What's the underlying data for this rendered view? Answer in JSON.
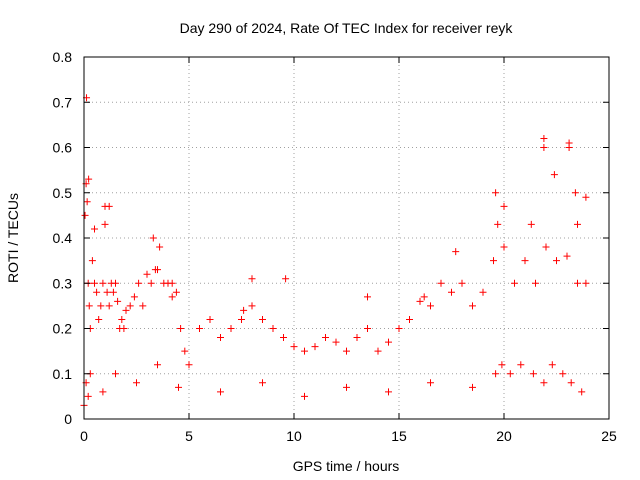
{
  "chart_data": {
    "type": "scatter",
    "title": "Day 290 of 2024, Rate Of TEC Index for receiver reyk",
    "xlabel": "GPS time / hours",
    "ylabel": "ROTI / TECUs",
    "xlim": [
      0,
      25
    ],
    "ylim": [
      0,
      0.8
    ],
    "x_ticks": [
      0,
      5,
      10,
      15,
      20,
      25
    ],
    "x_tick_labels": [
      "0",
      "5",
      "10",
      "15",
      "20",
      "25"
    ],
    "y_ticks": [
      0,
      0.1,
      0.2,
      0.3,
      0.4,
      0.5,
      0.6,
      0.7,
      0.8
    ],
    "y_tick_labels": [
      "0",
      "0.1",
      "0.2",
      "0.3",
      "0.4",
      "0.5",
      "0.6",
      "0.7",
      "0.8"
    ],
    "grid": true,
    "marker": "plus",
    "color": "#ff0000",
    "series": [
      {
        "x": [
          0.0,
          0.05,
          0.1,
          0.15,
          0.2,
          0.25,
          0.3,
          0.4,
          0.5,
          0.6,
          0.7,
          0.8,
          0.9,
          1.0,
          1.1,
          1.2,
          1.3,
          1.4,
          1.5,
          1.6,
          1.7,
          1.8,
          1.9,
          2.0,
          2.2,
          2.4,
          2.6,
          2.8,
          3.0,
          3.2,
          3.4,
          3.6,
          3.8,
          4.0,
          4.2,
          4.4,
          4.6,
          4.8,
          5.0,
          5.5,
          6.0,
          6.5,
          7.0,
          7.5,
          8.0,
          8.5,
          9.0,
          9.5,
          10.0,
          10.5,
          11.0,
          11.5,
          12.0,
          12.5,
          13.0,
          13.5,
          14.0,
          14.5,
          15.0,
          15.5,
          16.0,
          16.5,
          17.0,
          17.5,
          18.0,
          18.5,
          19.0,
          19.5,
          20.0,
          20.5,
          21.0,
          21.5,
          22.0,
          22.5,
          23.0,
          23.5,
          23.9,
          0.1,
          0.2,
          0.3,
          0.9,
          1.5,
          2.5,
          3.5,
          4.5,
          6.5,
          8.5,
          10.5,
          12.5,
          14.5,
          16.5,
          18.5,
          19.6,
          19.9,
          20.3,
          20.8,
          21.4,
          21.9,
          22.3,
          22.8,
          23.2,
          23.7,
          0.12,
          0.22,
          0.5,
          1.0,
          1.2,
          3.3,
          3.5,
          4.2,
          7.6,
          8.0,
          9.6,
          13.5,
          16.2,
          17.7,
          19.6,
          19.7,
          20.0,
          21.3,
          21.9,
          21.9,
          22.4,
          23.1,
          23.1,
          23.4,
          23.5,
          23.9
        ],
        "y": [
          0.03,
          0.45,
          0.52,
          0.48,
          0.3,
          0.25,
          0.2,
          0.35,
          0.3,
          0.28,
          0.22,
          0.25,
          0.3,
          0.47,
          0.28,
          0.25,
          0.3,
          0.28,
          0.3,
          0.26,
          0.2,
          0.22,
          0.2,
          0.24,
          0.25,
          0.27,
          0.3,
          0.25,
          0.32,
          0.3,
          0.33,
          0.38,
          0.3,
          0.3,
          0.27,
          0.28,
          0.2,
          0.15,
          0.12,
          0.2,
          0.22,
          0.18,
          0.2,
          0.22,
          0.25,
          0.22,
          0.2,
          0.18,
          0.16,
          0.15,
          0.16,
          0.18,
          0.17,
          0.15,
          0.18,
          0.2,
          0.15,
          0.17,
          0.2,
          0.22,
          0.26,
          0.25,
          0.3,
          0.28,
          0.3,
          0.25,
          0.28,
          0.35,
          0.38,
          0.3,
          0.35,
          0.3,
          0.38,
          0.35,
          0.36,
          0.3,
          0.3,
          0.08,
          0.05,
          0.1,
          0.06,
          0.1,
          0.08,
          0.12,
          0.07,
          0.06,
          0.08,
          0.05,
          0.07,
          0.06,
          0.08,
          0.07,
          0.1,
          0.12,
          0.1,
          0.12,
          0.1,
          0.08,
          0.12,
          0.1,
          0.08,
          0.06,
          0.71,
          0.53,
          0.42,
          0.43,
          0.47,
          0.4,
          0.33,
          0.3,
          0.24,
          0.31,
          0.31,
          0.27,
          0.27,
          0.37,
          0.5,
          0.43,
          0.47,
          0.43,
          0.62,
          0.6,
          0.54,
          0.61,
          0.6,
          0.5,
          0.43,
          0.49
        ]
      }
    ]
  }
}
